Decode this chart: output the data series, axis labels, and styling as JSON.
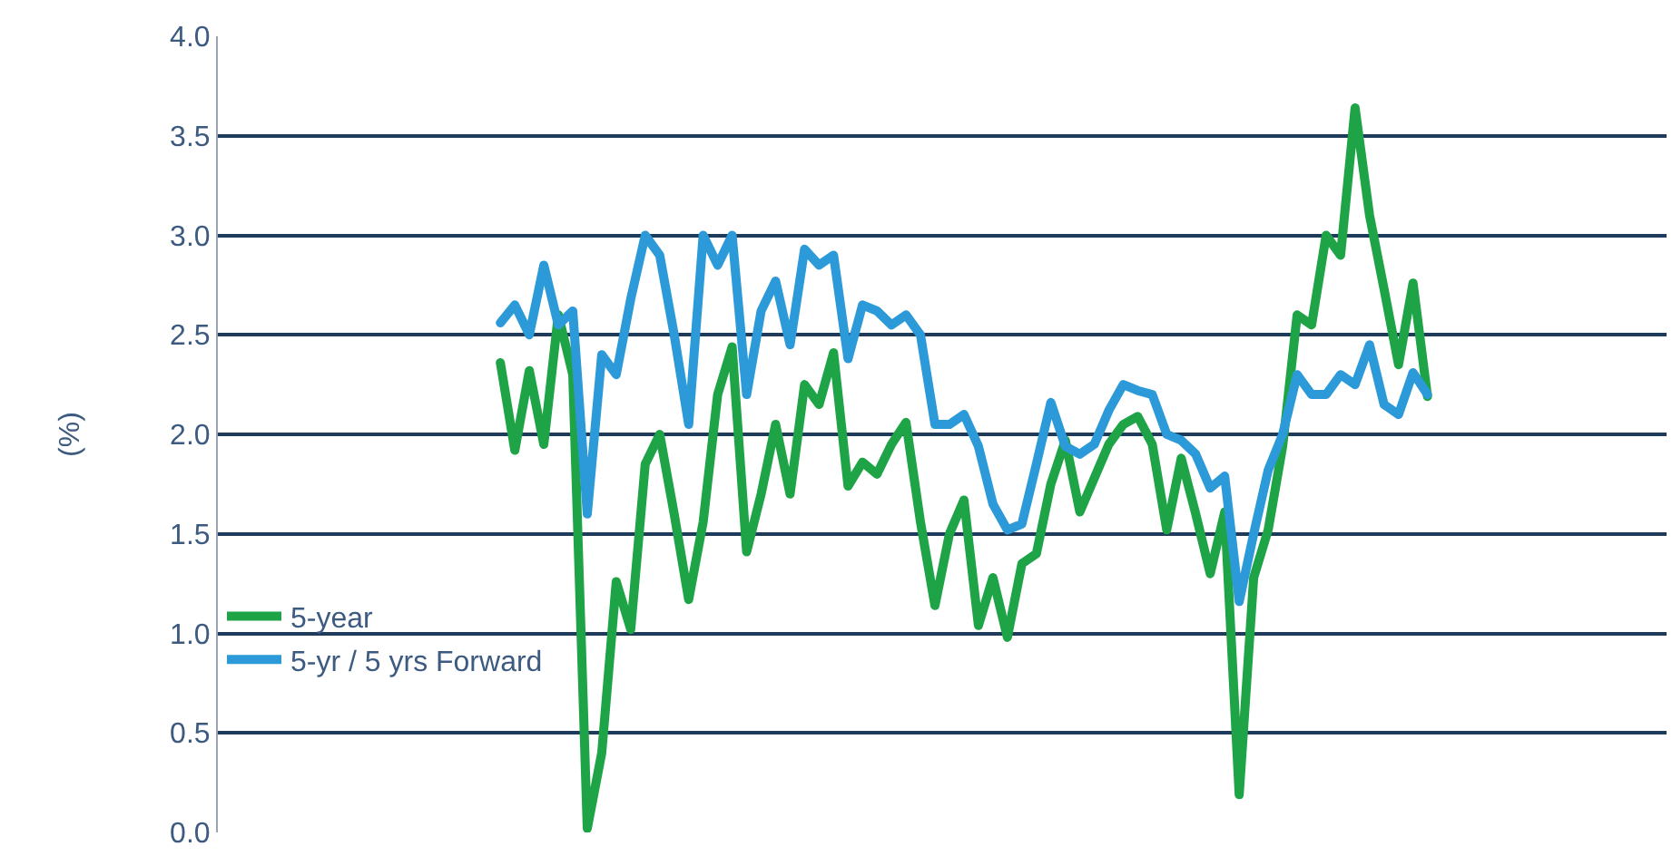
{
  "chart_data": {
    "type": "line",
    "ylabel": "(%)",
    "categories": [
      null,
      null,
      null,
      null,
      null,
      null,
      null,
      null,
      null,
      null,
      null,
      null,
      null,
      null,
      null,
      null,
      null,
      null,
      null,
      null,
      null,
      null,
      null,
      null,
      null,
      null,
      null,
      null,
      null,
      null,
      null,
      null,
      null,
      null,
      null,
      null,
      null,
      null,
      null,
      null,
      null,
      null,
      null,
      null,
      null,
      null,
      null,
      null,
      null,
      null,
      null,
      null,
      null,
      null,
      null,
      null,
      null,
      null,
      null,
      null,
      null,
      null,
      null,
      null,
      null,
      null,
      null,
      null,
      null,
      null,
      null,
      null,
      null,
      null,
      null,
      null,
      null,
      null,
      null,
      null,
      null,
      null,
      null,
      null,
      null,
      null,
      null,
      null,
      null,
      null,
      null,
      null,
      null,
      null,
      null,
      null,
      null,
      null,
      null,
      null
    ],
    "series": [
      {
        "name": "5-year",
        "color": "#1ea447",
        "values": [
          null,
          null,
          null,
          null,
          null,
          null,
          null,
          null,
          null,
          null,
          null,
          null,
          null,
          null,
          null,
          null,
          null,
          null,
          null,
          2.36,
          1.92,
          2.32,
          1.95,
          2.6,
          2.3,
          0.02,
          0.4,
          1.26,
          1.02,
          1.85,
          2.0,
          1.6,
          1.17,
          1.56,
          2.2,
          2.44,
          1.41,
          1.7,
          2.05,
          1.7,
          2.25,
          2.15,
          2.41,
          1.74,
          1.86,
          1.8,
          1.95,
          2.06,
          1.56,
          1.14,
          1.5,
          1.67,
          1.04,
          1.28,
          0.98,
          1.35,
          1.4,
          1.75,
          1.97,
          1.61,
          1.78,
          1.95,
          2.05,
          2.09,
          1.95,
          1.52,
          1.88,
          1.6,
          1.3,
          1.61,
          0.19,
          1.28,
          1.52,
          1.94,
          2.6,
          2.55,
          3.0,
          2.9,
          3.64,
          3.1,
          2.73,
          2.35,
          2.76,
          2.19,
          null,
          null,
          null,
          null,
          null,
          null,
          null,
          null,
          null,
          null,
          null,
          null,
          null,
          null,
          null,
          null
        ]
      },
      {
        "name": "5-yr / 5 yrs Forward",
        "color": "#2c9ad8",
        "values": [
          null,
          null,
          null,
          null,
          null,
          null,
          null,
          null,
          null,
          null,
          null,
          null,
          null,
          null,
          null,
          null,
          null,
          null,
          null,
          2.56,
          2.65,
          2.5,
          2.85,
          2.55,
          2.62,
          1.6,
          2.4,
          2.3,
          2.68,
          3.0,
          2.9,
          2.5,
          2.05,
          3.0,
          2.85,
          3.0,
          2.2,
          2.62,
          2.77,
          2.45,
          2.93,
          2.85,
          2.9,
          2.38,
          2.65,
          2.62,
          2.55,
          2.6,
          2.5,
          2.05,
          2.05,
          2.1,
          1.94,
          1.65,
          1.52,
          1.55,
          1.85,
          2.16,
          1.94,
          1.9,
          1.95,
          2.12,
          2.25,
          2.22,
          2.2,
          2.0,
          1.97,
          1.9,
          1.73,
          1.79,
          1.16,
          1.5,
          1.82,
          2.0,
          2.3,
          2.2,
          2.2,
          2.3,
          2.25,
          2.45,
          2.15,
          2.1,
          2.31,
          2.2,
          null,
          null,
          null,
          null,
          null,
          null,
          null,
          null,
          null,
          null,
          null,
          null,
          null,
          null,
          null,
          null
        ]
      }
    ],
    "ylim": [
      0,
      4.0
    ],
    "yticks": [
      {
        "value": 0,
        "label": "0.0"
      },
      {
        "value": 0.5,
        "label": "0.5"
      },
      {
        "value": 1,
        "label": "1.0"
      },
      {
        "value": 1.5,
        "label": "1.5"
      },
      {
        "value": 2,
        "label": "2.0"
      },
      {
        "value": 2.5,
        "label": "2.5"
      },
      {
        "value": 3,
        "label": "3.0"
      },
      {
        "value": 3.5,
        "label": "3.5"
      },
      {
        "value": 4,
        "label": "4.0"
      }
    ],
    "grid": "y",
    "legend": "bottom left",
    "tick_labels": "y"
  }
}
